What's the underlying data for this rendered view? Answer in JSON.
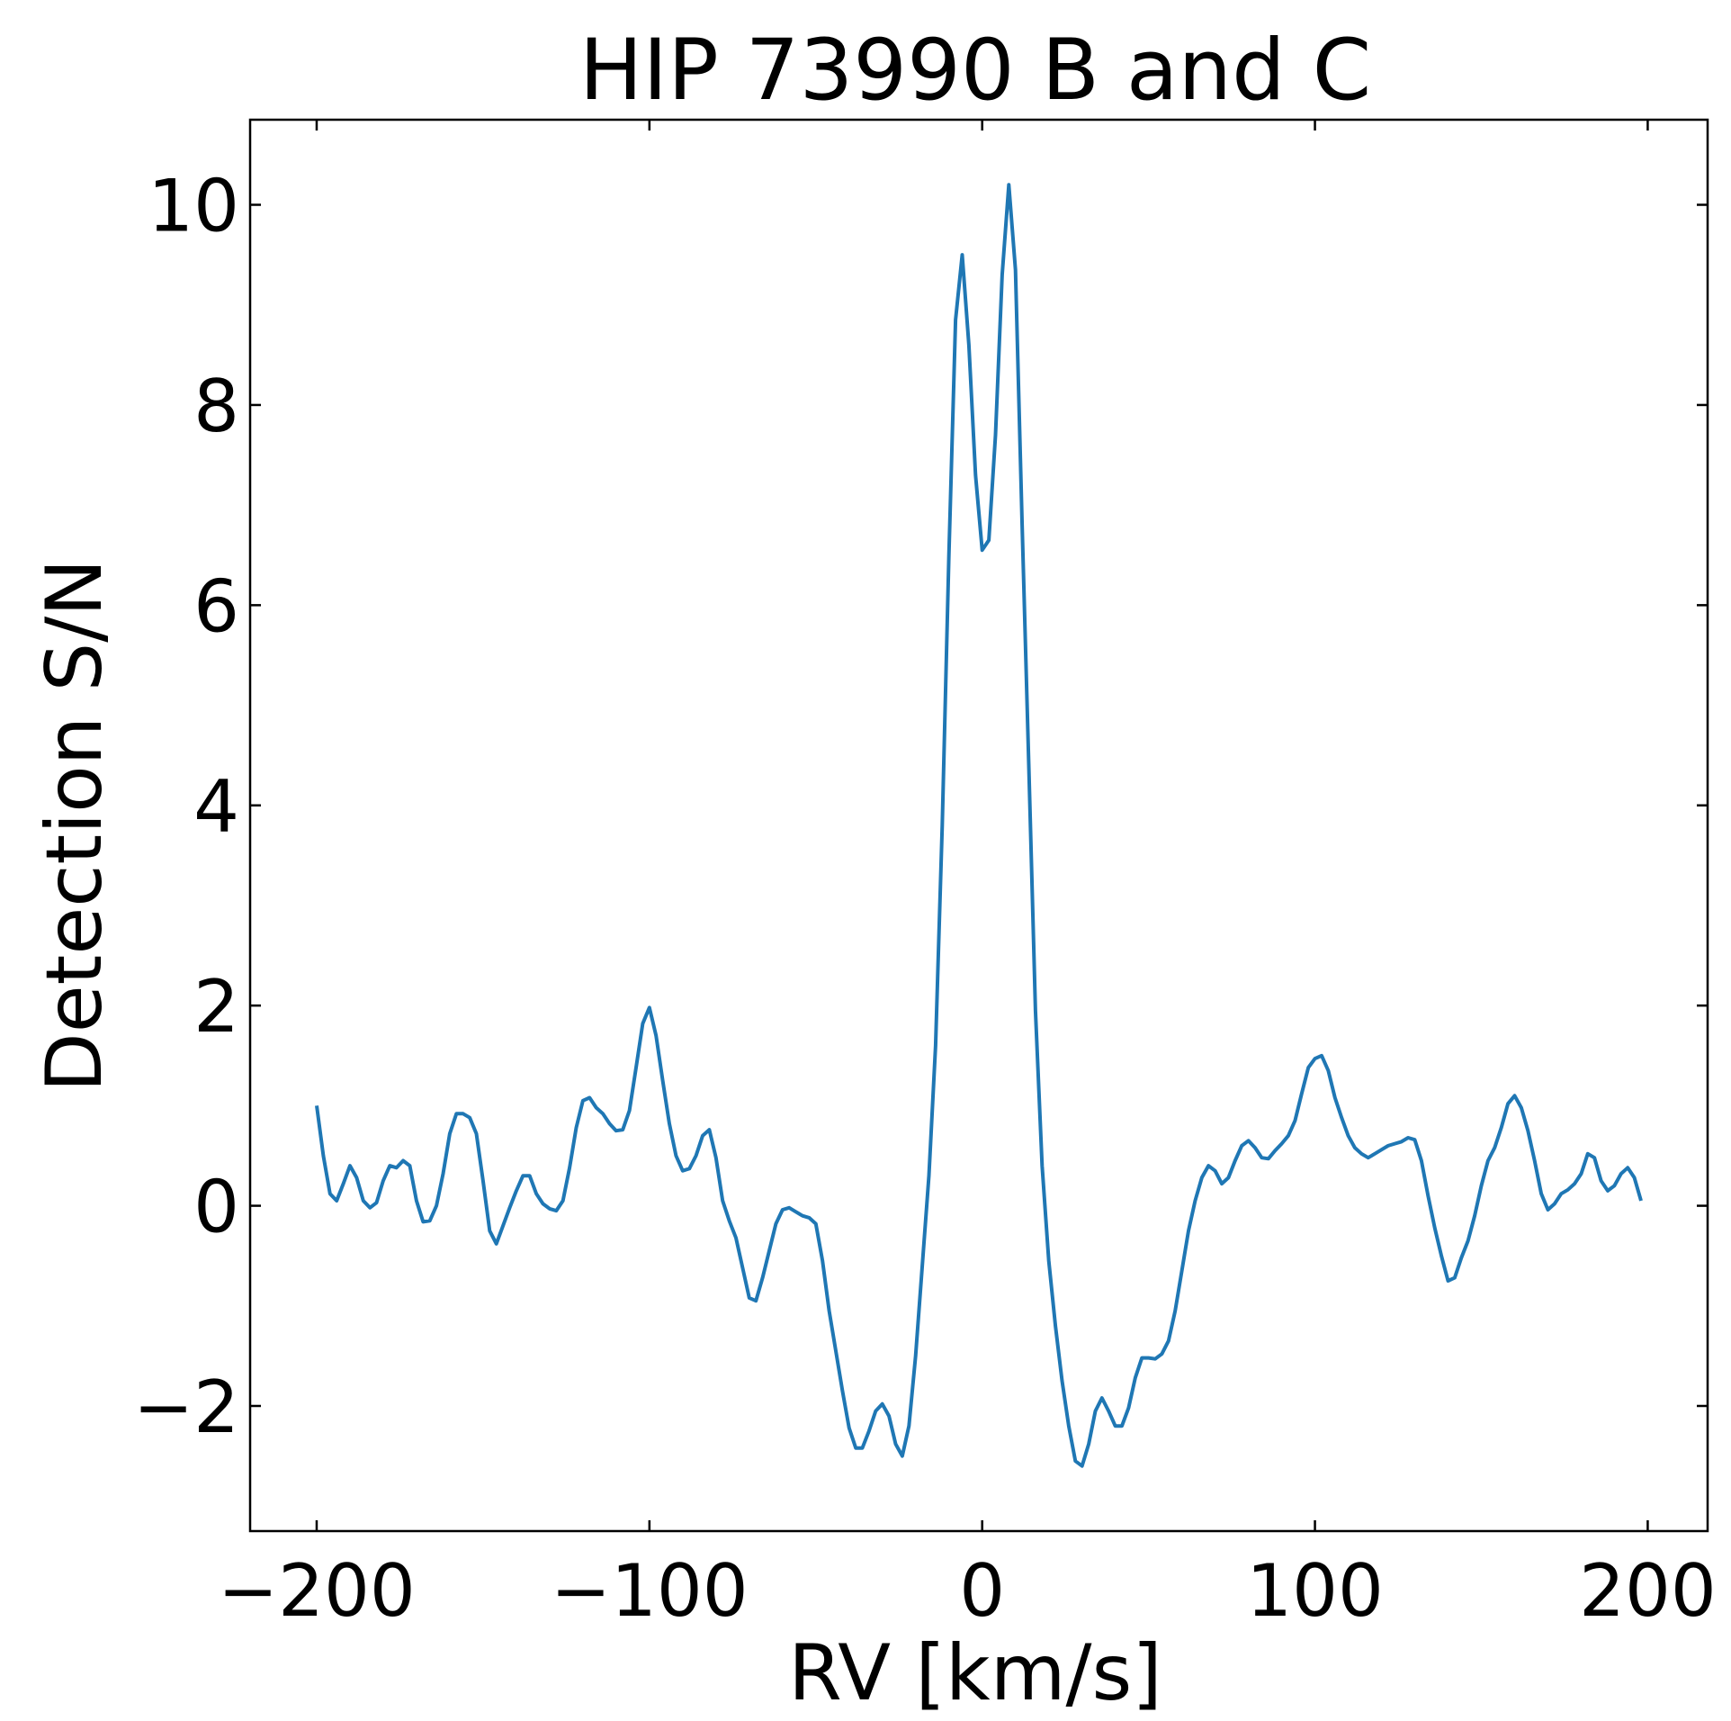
{
  "chart_data": {
    "type": "line",
    "title": "HIP 73990 B and C",
    "xlabel": "RV [km/s]",
    "ylabel": "Detection S/N",
    "xlim": [
      -220,
      218
    ],
    "ylim": [
      -3.25,
      10.85
    ],
    "xticks": [
      -200,
      -100,
      0,
      100,
      200
    ],
    "xtick_labels": [
      "−200",
      "−100",
      "0",
      "100",
      "200"
    ],
    "yticks": [
      -2,
      0,
      2,
      4,
      6,
      8,
      10
    ],
    "ytick_labels": [
      "−2",
      "0",
      "2",
      "4",
      "6",
      "8",
      "10"
    ],
    "grid": false,
    "legend": "none",
    "series": [
      {
        "color": "#1f77b4",
        "x": [
          -200,
          -198,
          -196,
          -194,
          -192,
          -190,
          -188,
          -186,
          -184,
          -182,
          -180,
          -178,
          -176,
          -174,
          -172,
          -170,
          -168,
          -166,
          -164,
          -162,
          -160,
          -158,
          -156,
          -154,
          -152,
          -150,
          -148,
          -146,
          -144,
          -142,
          -140,
          -138,
          -136,
          -134,
          -132,
          -130,
          -128,
          -126,
          -124,
          -122,
          -120,
          -118,
          -116,
          -114,
          -112,
          -110,
          -108,
          -106,
          -104,
          -102,
          -100,
          -98,
          -96,
          -94,
          -92,
          -90,
          -88,
          -86,
          -84,
          -82,
          -80,
          -78,
          -76,
          -74,
          -72,
          -70,
          -68,
          -66,
          -64,
          -62,
          -60,
          -58,
          -56,
          -54,
          -52,
          -50,
          -48,
          -46,
          -44,
          -42,
          -40,
          -38,
          -36,
          -34,
          -32,
          -30,
          -28,
          -26,
          -24,
          -22,
          -20,
          -18,
          -16,
          -14,
          -12,
          -10,
          -8,
          -6,
          -4,
          -2,
          0,
          2,
          4,
          6,
          8,
          10,
          12,
          14,
          16,
          18,
          20,
          22,
          24,
          26,
          28,
          30,
          32,
          34,
          36,
          38,
          40,
          42,
          44,
          46,
          48,
          50,
          52,
          54,
          56,
          58,
          60,
          62,
          64,
          66,
          68,
          70,
          72,
          74,
          76,
          78,
          80,
          82,
          84,
          86,
          88,
          90,
          92,
          94,
          96,
          98,
          100,
          102,
          104,
          106,
          108,
          110,
          112,
          114,
          116,
          118,
          120,
          122,
          124,
          126,
          128,
          130,
          132,
          134,
          136,
          138,
          140,
          142,
          144,
          146,
          148,
          150,
          152,
          154,
          156,
          158,
          160,
          162,
          164,
          166,
          168,
          170,
          172,
          174,
          176,
          178,
          180,
          182,
          184,
          186,
          188,
          190,
          192,
          194,
          196,
          198
        ],
        "y": [
          1.0,
          0.5,
          0.12,
          0.05,
          0.22,
          0.4,
          0.28,
          0.05,
          -0.02,
          0.03,
          0.25,
          0.4,
          0.38,
          0.45,
          0.4,
          0.05,
          -0.16,
          -0.15,
          0.0,
          0.32,
          0.72,
          0.92,
          0.92,
          0.88,
          0.72,
          0.25,
          -0.25,
          -0.38,
          -0.2,
          -0.02,
          0.15,
          0.3,
          0.3,
          0.12,
          0.02,
          -0.03,
          -0.05,
          0.05,
          0.38,
          0.78,
          1.05,
          1.08,
          0.98,
          0.92,
          0.82,
          0.75,
          0.76,
          0.95,
          1.38,
          1.82,
          1.98,
          1.7,
          1.25,
          0.82,
          0.5,
          0.35,
          0.37,
          0.5,
          0.7,
          0.76,
          0.48,
          0.05,
          -0.15,
          -0.32,
          -0.62,
          -0.92,
          -0.95,
          -0.72,
          -0.45,
          -0.18,
          -0.04,
          -0.02,
          -0.06,
          -0.1,
          -0.12,
          -0.18,
          -0.55,
          -1.05,
          -1.45,
          -1.85,
          -2.22,
          -2.42,
          -2.42,
          -2.25,
          -2.05,
          -1.98,
          -2.1,
          -2.38,
          -2.5,
          -2.2,
          -1.5,
          -0.6,
          0.3,
          1.6,
          3.8,
          6.5,
          8.85,
          9.5,
          8.6,
          7.3,
          6.55,
          6.65,
          7.7,
          9.3,
          10.2,
          9.35,
          6.8,
          4.4,
          1.95,
          0.4,
          -0.55,
          -1.2,
          -1.75,
          -2.2,
          -2.55,
          -2.6,
          -2.38,
          -2.05,
          -1.92,
          -2.05,
          -2.2,
          -2.2,
          -2.02,
          -1.72,
          -1.52,
          -1.52,
          -1.53,
          -1.48,
          -1.35,
          -1.05,
          -0.65,
          -0.25,
          0.05,
          0.28,
          0.4,
          0.35,
          0.22,
          0.28,
          0.45,
          0.6,
          0.65,
          0.58,
          0.48,
          0.47,
          0.55,
          0.62,
          0.7,
          0.85,
          1.12,
          1.38,
          1.47,
          1.5,
          1.35,
          1.08,
          0.88,
          0.7,
          0.58,
          0.52,
          0.48,
          0.52,
          0.56,
          0.6,
          0.62,
          0.64,
          0.68,
          0.66,
          0.45,
          0.1,
          -0.22,
          -0.5,
          -0.75,
          -0.72,
          -0.52,
          -0.35,
          -0.1,
          0.2,
          0.45,
          0.58,
          0.78,
          1.02,
          1.1,
          0.98,
          0.75,
          0.45,
          0.12,
          -0.04,
          0.02,
          0.12,
          0.16,
          0.22,
          0.32,
          0.52,
          0.48,
          0.25,
          0.15,
          0.2,
          0.32,
          0.38,
          0.28,
          0.05
        ]
      }
    ]
  }
}
